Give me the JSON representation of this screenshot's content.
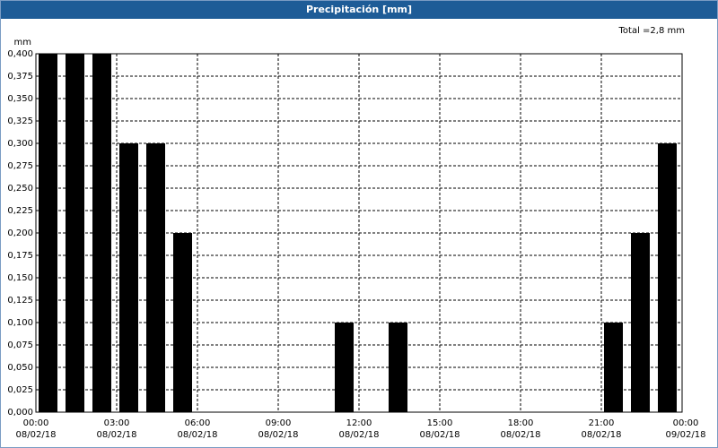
{
  "window_title": "Precipitación [mm]",
  "chart_data": {
    "type": "bar",
    "y_label": "mm",
    "annotation": "Total =2,8 mm",
    "x": [
      0,
      1,
      2,
      3,
      4,
      5,
      6,
      7,
      8,
      9,
      10,
      11,
      12,
      13,
      14,
      15,
      16,
      17,
      18,
      19,
      20,
      21,
      22,
      23
    ],
    "values": [
      0.4,
      0.4,
      0.4,
      0.3,
      0.3,
      0.2,
      0,
      0,
      0,
      0,
      0,
      0.1,
      0,
      0.1,
      0,
      0,
      0,
      0,
      0,
      0,
      0,
      0.1,
      0.2,
      0.3
    ],
    "color": "#000000",
    "xlim": [
      0,
      24
    ],
    "xticks": [
      {
        "value": 0,
        "label": "00:00\n08/02/18"
      },
      {
        "value": 3,
        "label": "03:00\n08/02/18"
      },
      {
        "value": 6,
        "label": "06:00\n08/02/18"
      },
      {
        "value": 9,
        "label": "09:00\n08/02/18"
      },
      {
        "value": 12,
        "label": "12:00\n08/02/18"
      },
      {
        "value": 15,
        "label": "15:00\n08/02/18"
      },
      {
        "value": 18,
        "label": "18:00\n08/02/18"
      },
      {
        "value": 21,
        "label": "21:00\n08/02/18"
      },
      {
        "value": 24,
        "label": "00:00\n09/02/18"
      }
    ],
    "ylim": [
      0,
      0.4
    ],
    "yticks": [
      {
        "value": 0,
        "label": "0,000"
      },
      {
        "value": 0.025,
        "label": "0,025"
      },
      {
        "value": 0.05,
        "label": "0,050"
      },
      {
        "value": 0.075,
        "label": "0,075"
      },
      {
        "value": 0.1,
        "label": "0,100"
      },
      {
        "value": 0.125,
        "label": "0,125"
      },
      {
        "value": 0.15,
        "label": "0,150"
      },
      {
        "value": 0.175,
        "label": "0,175"
      },
      {
        "value": 0.2,
        "label": "0,200"
      },
      {
        "value": 0.225,
        "label": "0,225"
      },
      {
        "value": 0.25,
        "label": "0,250"
      },
      {
        "value": 0.275,
        "label": "0,275"
      },
      {
        "value": 0.3,
        "label": "0,300"
      },
      {
        "value": 0.325,
        "label": "0,325"
      },
      {
        "value": 0.35,
        "label": "0,350"
      },
      {
        "value": 0.375,
        "label": "0,375"
      },
      {
        "value": 0.4,
        "label": "0,400"
      }
    ],
    "grid": true
  }
}
